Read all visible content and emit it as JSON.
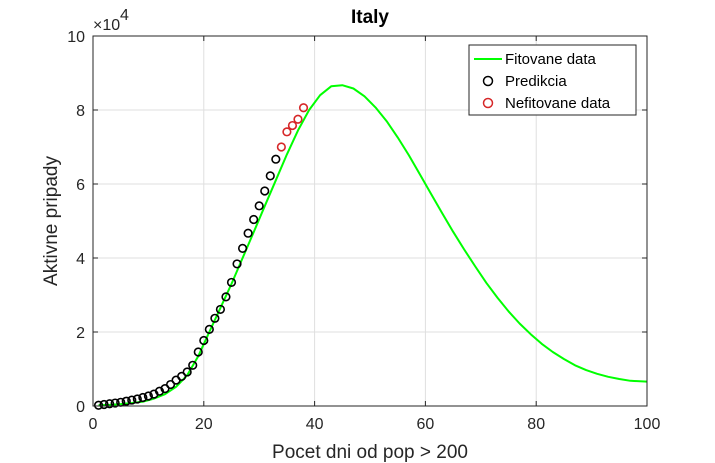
{
  "chart_data": {
    "type": "line",
    "title": "Italy",
    "xlabel": "Pocet dni od pop > 200",
    "ylabel": "Aktivne pripady",
    "y_exponent_label": "×10",
    "y_exponent_power": "4",
    "xlim": [
      0,
      100
    ],
    "ylim": [
      0,
      100000
    ],
    "xticks": [
      0,
      20,
      40,
      60,
      80,
      100
    ],
    "yticks": [
      0,
      20000,
      40000,
      60000,
      80000,
      100000
    ],
    "ytick_labels": [
      "0",
      "2",
      "4",
      "6",
      "8",
      "10"
    ],
    "xtick_labels": [
      "0",
      "20",
      "40",
      "60",
      "80",
      "100"
    ],
    "grid": true,
    "legend_position": "top-right",
    "colors": {
      "fit": "#00ff00",
      "pred": "#000000",
      "nonfit": "#d62728"
    },
    "series": [
      {
        "name": "Fitovane data",
        "kind": "line",
        "color": "#00ff00",
        "x": [
          1,
          3,
          5,
          7,
          9,
          11,
          13,
          15,
          17,
          19,
          21,
          23,
          25,
          27,
          29,
          31,
          33,
          35,
          37,
          39,
          41,
          43,
          45,
          47,
          49,
          51,
          53,
          55,
          57,
          59,
          61,
          63,
          65,
          67,
          69,
          71,
          73,
          75,
          77,
          79,
          81,
          83,
          85,
          87,
          89,
          91,
          93,
          95,
          97,
          100
        ],
        "y": [
          200,
          300,
          500,
          800,
          1200,
          2000,
          3200,
          5200,
          8300,
          13500,
          20000,
          26500,
          33000,
          40000,
          47000,
          54000,
          61000,
          68000,
          74500,
          80000,
          84000,
          86400,
          86700,
          85800,
          83700,
          80700,
          77000,
          72600,
          67800,
          62600,
          57400,
          52200,
          47100,
          42300,
          37700,
          33300,
          29300,
          25600,
          22300,
          19400,
          16800,
          14600,
          12700,
          11000,
          9700,
          8700,
          7900,
          7300,
          6800,
          6600
        ]
      },
      {
        "name": "Predikcia",
        "kind": "marker",
        "color": "#000000",
        "x": [
          1,
          2,
          3,
          4,
          5,
          6,
          7,
          8,
          9,
          10,
          11,
          12,
          13,
          14,
          15,
          16,
          17,
          18,
          19,
          20,
          21,
          22,
          23,
          24,
          25,
          26,
          27,
          28,
          29,
          30,
          31,
          32,
          33
        ],
        "y": [
          200,
          400,
          600,
          800,
          1000,
          1300,
          1600,
          1900,
          2300,
          2700,
          3200,
          4000,
          4700,
          5800,
          7000,
          8000,
          9200,
          11000,
          14600,
          17700,
          20700,
          23700,
          26100,
          29500,
          33400,
          38400,
          42600,
          46700,
          50400,
          54100,
          58100,
          62200,
          66700
        ]
      },
      {
        "name": "Nefitovane data",
        "kind": "marker",
        "color": "#d62728",
        "x": [
          34,
          35,
          36,
          37,
          38
        ],
        "y": [
          70000,
          74100,
          75800,
          77500,
          80600
        ]
      }
    ]
  }
}
